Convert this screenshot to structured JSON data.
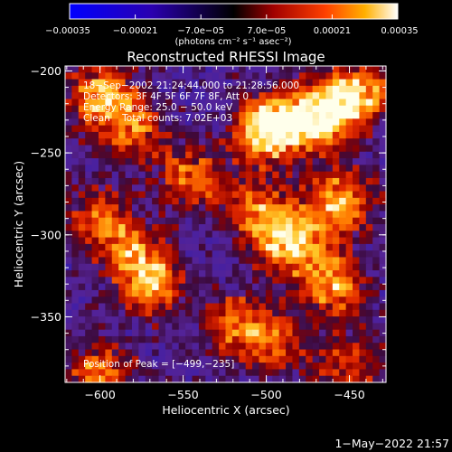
{
  "chart_data": {
    "type": "heatmap",
    "title": "Reconstructed RHESSI Image",
    "xlabel": "Heliocentric X (arcsec)",
    "ylabel": "Heliocentric Y (arcsec)",
    "xlim": [
      -621,
      -428
    ],
    "ylim": [
      -390,
      -197
    ],
    "x_ticks": [
      -600,
      -550,
      -500,
      -450
    ],
    "x_tick_labels": [
      "−600",
      "−550",
      "−500",
      "−450"
    ],
    "y_ticks": [
      -200,
      -250,
      -300,
      -350
    ],
    "y_tick_labels": [
      "−200",
      "−250",
      "−300",
      "−350"
    ],
    "colorbar": {
      "range": [
        -0.00035,
        0.00035
      ],
      "tick_values": [
        -0.00035,
        -0.00021,
        -7e-05,
        7e-05,
        0.00021,
        0.00035
      ],
      "tick_labels": [
        "−0.00035",
        "−0.00021",
        "−7.0e−05",
        "7.0e−05",
        "0.00021",
        "0.00035"
      ],
      "unit_label": "(photons cm⁻² s⁻¹ asec⁻²)"
    },
    "annotations": [
      "18−Sep−2002 21:24:44.000 to 21:28:56.000",
      "Detectors: 3F 4F 5F 6F 7F 8F, Att 0",
      "Energy Range: 25.0 − 50.0 keV",
      "Clean    Total counts: 7.02E+03"
    ],
    "peak_label": "Position of Peak = [−499,−235]",
    "peak_position": [
      -499,
      -235
    ],
    "image_grid": {
      "cols": 48,
      "rows": 48,
      "hot_sources": [
        {
          "x": -499,
          "y": -235,
          "intensity": 1.0
        },
        {
          "x": -470,
          "y": -230,
          "intensity": 0.85
        },
        {
          "x": -445,
          "y": -215,
          "intensity": 0.8
        },
        {
          "x": -455,
          "y": -280,
          "intensity": 0.75
        },
        {
          "x": -485,
          "y": -305,
          "intensity": 0.8
        },
        {
          "x": -460,
          "y": -330,
          "intensity": 0.7
        },
        {
          "x": -505,
          "y": -285,
          "intensity": 0.6
        },
        {
          "x": -520,
          "y": -355,
          "intensity": 0.55
        },
        {
          "x": -495,
          "y": -365,
          "intensity": 0.5
        },
        {
          "x": -600,
          "y": -215,
          "intensity": 0.7
        },
        {
          "x": -580,
          "y": -235,
          "intensity": 0.55
        },
        {
          "x": -545,
          "y": -265,
          "intensity": 0.55
        },
        {
          "x": -600,
          "y": -290,
          "intensity": 0.5
        },
        {
          "x": -570,
          "y": -330,
          "intensity": 0.65
        },
        {
          "x": -600,
          "y": -385,
          "intensity": 0.6
        },
        {
          "x": -580,
          "y": -310,
          "intensity": 0.45
        },
        {
          "x": -450,
          "y": -380,
          "intensity": 0.5
        }
      ]
    }
  },
  "footer": {
    "timestamp": "1−May−2022 21:57"
  }
}
